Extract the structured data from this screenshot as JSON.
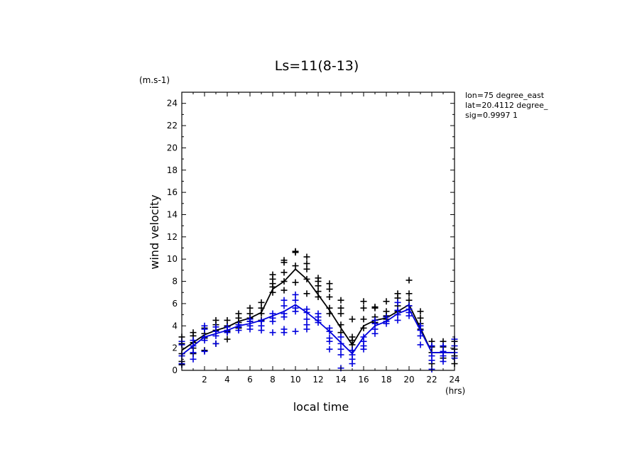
{
  "chart_data": {
    "type": "scatter",
    "title": "Ls=11(8-13)",
    "xlabel": "local time",
    "ylabel": "wind velocity",
    "x_unit": "(hrs)",
    "y_unit": "(m.s-1)",
    "xlim": [
      0,
      24
    ],
    "ylim": [
      0,
      25
    ],
    "xticks": [
      2,
      4,
      6,
      8,
      10,
      12,
      14,
      16,
      18,
      20,
      22,
      24
    ],
    "yticks": [
      0,
      2,
      4,
      6,
      8,
      10,
      12,
      14,
      16,
      18,
      20,
      22,
      24
    ],
    "grid": false,
    "annotations": [
      "lon=75 degree_east",
      "lat=20.4112 degree_",
      "sig=0.9997 1"
    ],
    "series": [
      {
        "color": "#000000",
        "line": {
          "x": [
            0,
            1,
            2,
            3,
            4,
            5,
            6,
            7,
            8,
            9,
            10,
            11,
            12,
            13,
            14,
            15,
            16,
            17,
            18,
            19,
            20,
            21,
            22,
            23,
            24
          ],
          "y": [
            1.8,
            2.5,
            3.2,
            3.6,
            3.9,
            4.4,
            4.7,
            5.2,
            7.3,
            8.0,
            9.1,
            8.2,
            6.8,
            5.4,
            3.8,
            2.3,
            4.0,
            4.5,
            4.7,
            5.3,
            5.9,
            3.8,
            1.6,
            1.6,
            1.6
          ]
        },
        "points": [
          [
            0,
            3.0
          ],
          [
            0,
            2.4
          ],
          [
            0,
            1.5
          ],
          [
            0,
            0.8
          ],
          [
            0,
            0.5
          ],
          [
            1,
            3.4
          ],
          [
            1,
            3.1
          ],
          [
            1,
            2.5
          ],
          [
            1,
            2.0
          ],
          [
            1,
            1.5
          ],
          [
            2,
            3.8
          ],
          [
            2,
            3.3
          ],
          [
            2,
            2.9
          ],
          [
            2,
            1.8
          ],
          [
            3,
            4.5
          ],
          [
            3,
            4.1
          ],
          [
            3,
            3.6
          ],
          [
            3,
            2.4
          ],
          [
            4,
            4.5
          ],
          [
            4,
            4.0
          ],
          [
            4,
            3.5
          ],
          [
            4,
            2.8
          ],
          [
            5,
            5.1
          ],
          [
            5,
            4.7
          ],
          [
            5,
            4.3
          ],
          [
            5,
            3.8
          ],
          [
            6,
            5.6
          ],
          [
            6,
            5.1
          ],
          [
            6,
            4.7
          ],
          [
            6,
            4.4
          ],
          [
            7,
            6.1
          ],
          [
            7,
            5.6
          ],
          [
            7,
            5.1
          ],
          [
            7,
            4.5
          ],
          [
            8,
            8.6
          ],
          [
            8,
            8.2
          ],
          [
            8,
            7.8
          ],
          [
            8,
            7.5
          ],
          [
            8,
            7.0
          ],
          [
            9,
            9.9
          ],
          [
            9,
            9.7
          ],
          [
            9,
            8.8
          ],
          [
            9,
            8.0
          ],
          [
            9,
            7.2
          ],
          [
            10,
            10.7
          ],
          [
            10,
            10.6
          ],
          [
            10,
            9.4
          ],
          [
            10,
            7.9
          ],
          [
            11,
            10.2
          ],
          [
            11,
            9.6
          ],
          [
            11,
            9.1
          ],
          [
            11,
            8.2
          ],
          [
            11,
            6.9
          ],
          [
            12,
            8.3
          ],
          [
            12,
            8.0
          ],
          [
            12,
            7.6
          ],
          [
            12,
            7.1
          ],
          [
            12,
            6.6
          ],
          [
            13,
            7.8
          ],
          [
            13,
            7.3
          ],
          [
            13,
            6.6
          ],
          [
            13,
            5.6
          ],
          [
            13,
            5.1
          ],
          [
            14,
            6.3
          ],
          [
            14,
            5.6
          ],
          [
            14,
            5.1
          ],
          [
            14,
            4.1
          ],
          [
            14,
            3.4
          ],
          [
            15,
            4.6
          ],
          [
            15,
            3.0
          ],
          [
            15,
            2.7
          ],
          [
            15,
            2.3
          ],
          [
            15,
            1.8
          ],
          [
            16,
            6.2
          ],
          [
            16,
            5.6
          ],
          [
            16,
            4.6
          ],
          [
            16,
            3.8
          ],
          [
            17,
            5.7
          ],
          [
            17,
            5.6
          ],
          [
            17,
            4.8
          ],
          [
            17,
            4.3
          ],
          [
            18,
            6.2
          ],
          [
            18,
            5.3
          ],
          [
            18,
            4.9
          ],
          [
            18,
            4.6
          ],
          [
            19,
            6.9
          ],
          [
            19,
            6.5
          ],
          [
            19,
            5.8
          ],
          [
            19,
            5.3
          ],
          [
            20,
            8.1
          ],
          [
            20,
            6.9
          ],
          [
            20,
            6.3
          ],
          [
            20,
            5.8
          ],
          [
            21,
            5.3
          ],
          [
            21,
            4.7
          ],
          [
            21,
            4.2
          ],
          [
            21,
            3.7
          ],
          [
            22,
            2.6
          ],
          [
            22,
            2.1
          ],
          [
            22,
            1.6
          ],
          [
            22,
            0.6
          ],
          [
            23,
            2.6
          ],
          [
            23,
            2.1
          ],
          [
            23,
            1.6
          ],
          [
            23,
            1.1
          ],
          [
            24,
            2.6
          ],
          [
            24,
            1.9
          ],
          [
            24,
            1.3
          ],
          [
            24,
            0.6
          ]
        ]
      },
      {
        "color": "#0000dd",
        "line": {
          "x": [
            0,
            1,
            2,
            3,
            4,
            5,
            6,
            7,
            8,
            9,
            10,
            11,
            12,
            13,
            14,
            15,
            16,
            17,
            18,
            19,
            20,
            21,
            22,
            23,
            24
          ],
          "y": [
            1.4,
            2.2,
            3.0,
            3.3,
            3.6,
            4.0,
            4.2,
            4.5,
            4.9,
            5.3,
            5.9,
            5.2,
            4.4,
            3.5,
            2.5,
            1.5,
            3.0,
            4.0,
            4.4,
            5.1,
            5.5,
            3.6,
            1.6,
            1.6,
            1.6
          ]
        },
        "points": [
          [
            0,
            2.6
          ],
          [
            0,
            2.3
          ],
          [
            0,
            1.3
          ],
          [
            0,
            0.6
          ],
          [
            1,
            2.7
          ],
          [
            1,
            2.2
          ],
          [
            1,
            1.6
          ],
          [
            1,
            1.0
          ],
          [
            2,
            4.0
          ],
          [
            2,
            3.7
          ],
          [
            2,
            3.0
          ],
          [
            2,
            2.7
          ],
          [
            2,
            1.7
          ],
          [
            3,
            3.9
          ],
          [
            3,
            3.5
          ],
          [
            3,
            3.1
          ],
          [
            3,
            2.4
          ],
          [
            4,
            3.9
          ],
          [
            4,
            3.6
          ],
          [
            4,
            3.4
          ],
          [
            5,
            4.1
          ],
          [
            5,
            3.9
          ],
          [
            5,
            3.6
          ],
          [
            6,
            4.6
          ],
          [
            6,
            4.4
          ],
          [
            6,
            4.0
          ],
          [
            6,
            3.7
          ],
          [
            7,
            4.4
          ],
          [
            7,
            4.0
          ],
          [
            7,
            3.6
          ],
          [
            8,
            5.1
          ],
          [
            8,
            4.7
          ],
          [
            8,
            4.4
          ],
          [
            8,
            3.4
          ],
          [
            9,
            6.3
          ],
          [
            9,
            5.8
          ],
          [
            9,
            5.1
          ],
          [
            9,
            4.8
          ],
          [
            9,
            3.7
          ],
          [
            9,
            3.4
          ],
          [
            10,
            6.8
          ],
          [
            10,
            6.3
          ],
          [
            10,
            5.6
          ],
          [
            10,
            5.3
          ],
          [
            10,
            3.5
          ],
          [
            11,
            5.5
          ],
          [
            11,
            5.2
          ],
          [
            11,
            4.6
          ],
          [
            11,
            4.1
          ],
          [
            11,
            3.7
          ],
          [
            12,
            5.1
          ],
          [
            12,
            4.8
          ],
          [
            12,
            4.5
          ],
          [
            12,
            4.3
          ],
          [
            13,
            3.8
          ],
          [
            13,
            3.5
          ],
          [
            13,
            2.9
          ],
          [
            13,
            2.6
          ],
          [
            13,
            1.9
          ],
          [
            14,
            3.0
          ],
          [
            14,
            2.4
          ],
          [
            14,
            1.9
          ],
          [
            14,
            1.4
          ],
          [
            14,
            0.2
          ],
          [
            15,
            1.8
          ],
          [
            15,
            1.4
          ],
          [
            15,
            1.0
          ],
          [
            15,
            0.6
          ],
          [
            16,
            3.0
          ],
          [
            16,
            2.6
          ],
          [
            16,
            2.2
          ],
          [
            16,
            1.9
          ],
          [
            17,
            4.5
          ],
          [
            17,
            4.2
          ],
          [
            17,
            3.7
          ],
          [
            17,
            3.3
          ],
          [
            18,
            4.8
          ],
          [
            18,
            4.4
          ],
          [
            18,
            4.2
          ],
          [
            19,
            6.1
          ],
          [
            19,
            5.4
          ],
          [
            19,
            5.0
          ],
          [
            19,
            4.5
          ],
          [
            20,
            5.8
          ],
          [
            20,
            5.5
          ],
          [
            20,
            5.2
          ],
          [
            20,
            4.9
          ],
          [
            21,
            4.0
          ],
          [
            21,
            3.6
          ],
          [
            21,
            3.1
          ],
          [
            21,
            2.3
          ],
          [
            22,
            2.2
          ],
          [
            22,
            1.3
          ],
          [
            22,
            0.9
          ],
          [
            22,
            0.1
          ],
          [
            23,
            2.2
          ],
          [
            23,
            1.7
          ],
          [
            23,
            1.3
          ],
          [
            23,
            0.8
          ],
          [
            24,
            2.8
          ],
          [
            24,
            2.2
          ],
          [
            24,
            1.6
          ],
          [
            24,
            1.1
          ]
        ]
      }
    ]
  }
}
